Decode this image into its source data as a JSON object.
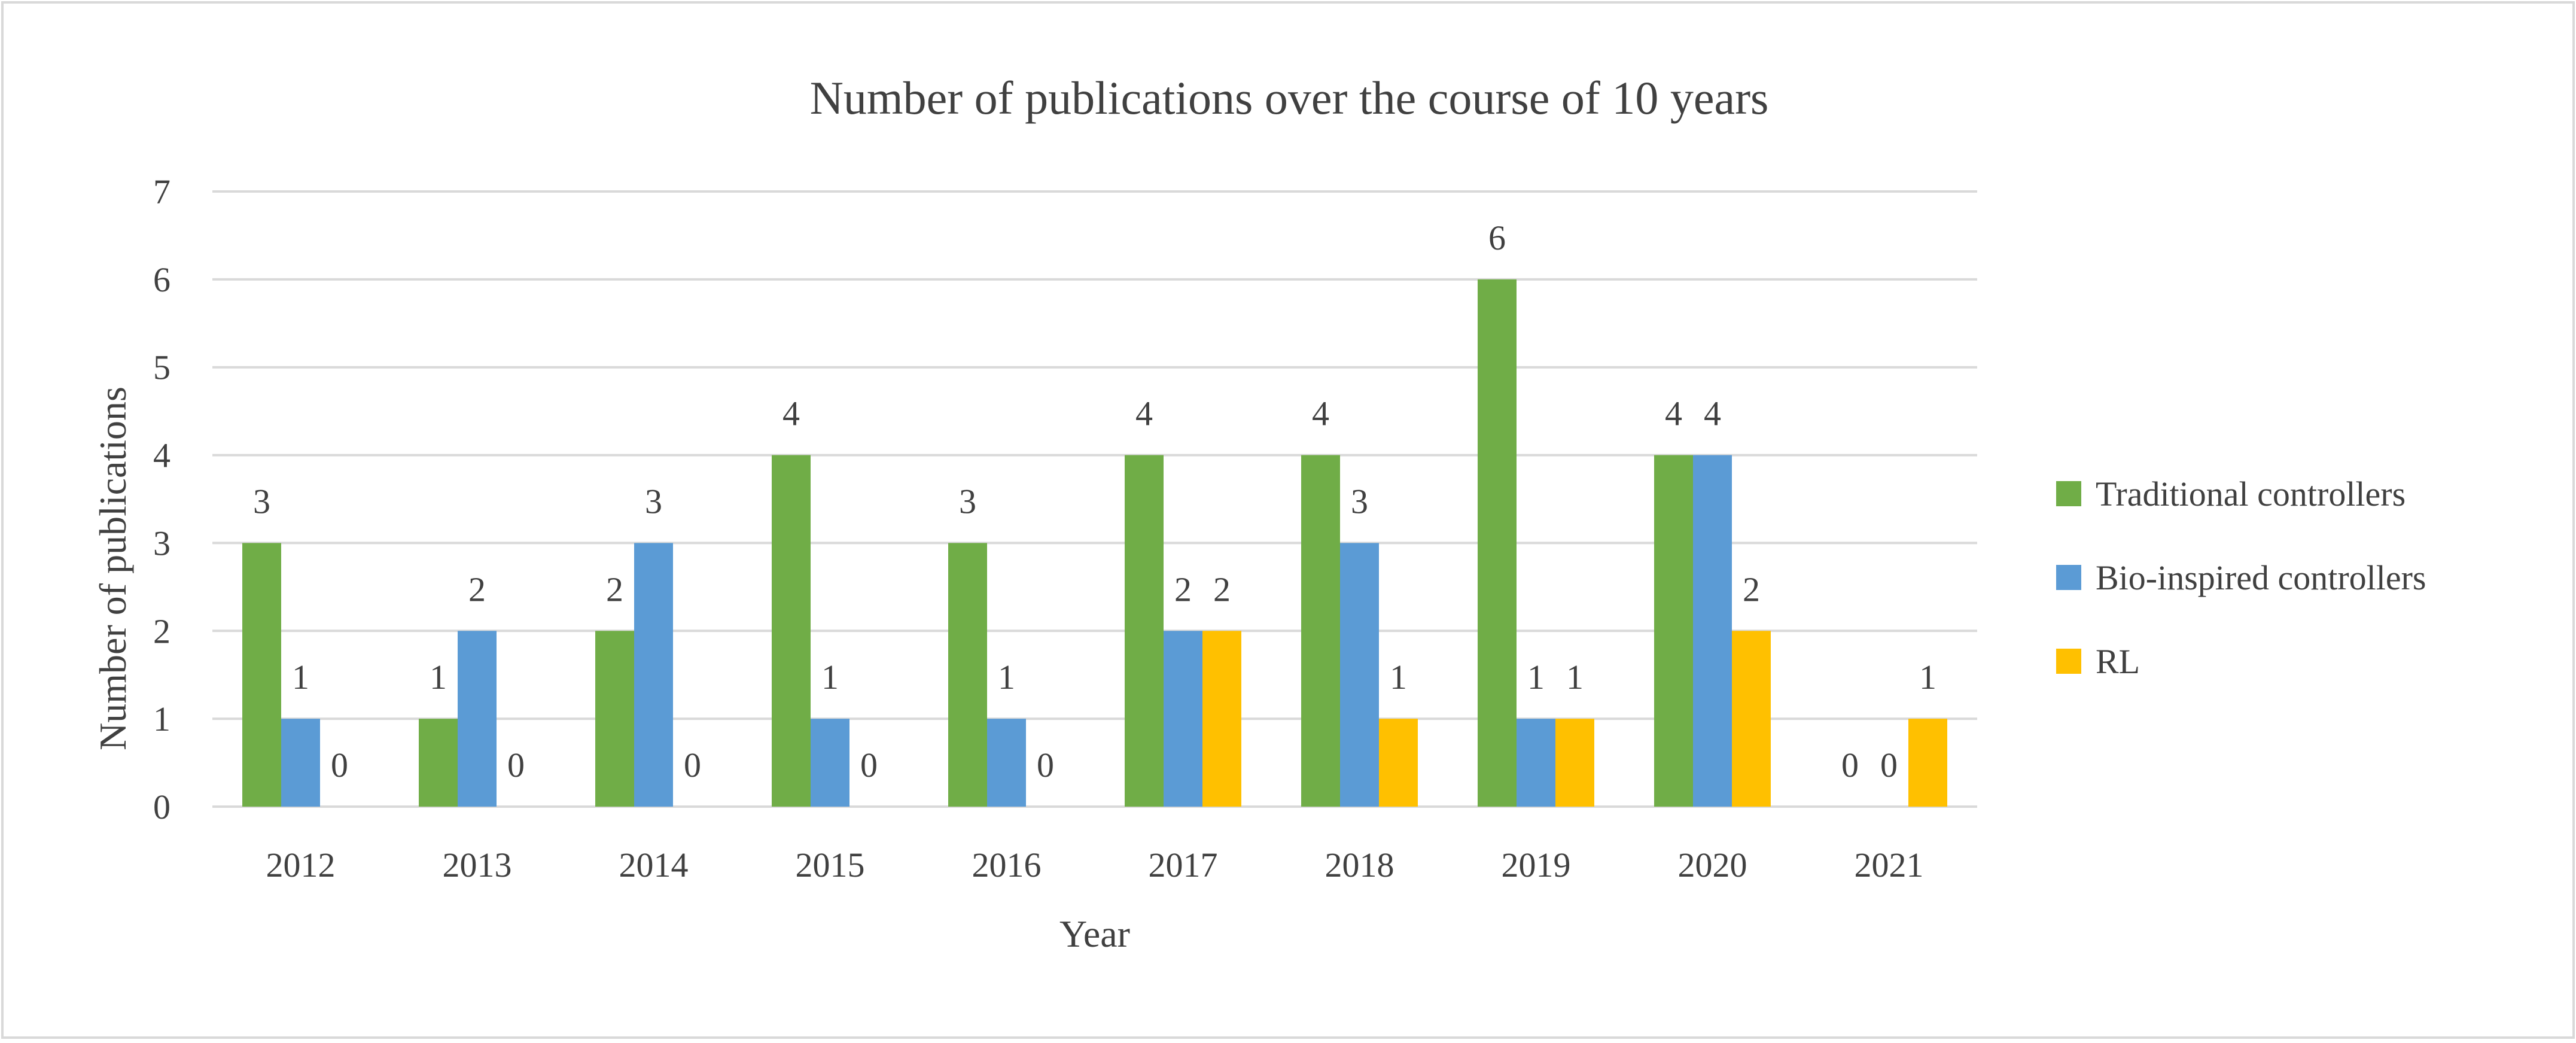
{
  "chart_data": {
    "type": "bar",
    "title": "Number of publications over the course of 10 years",
    "xlabel": "Year",
    "ylabel": "Number of publications",
    "categories": [
      "2012",
      "2013",
      "2014",
      "2015",
      "2016",
      "2017",
      "2018",
      "2019",
      "2020",
      "2021"
    ],
    "series": [
      {
        "name": "Traditional controllers",
        "color": "#70AD47",
        "values": [
          3,
          1,
          2,
          4,
          3,
          4,
          4,
          6,
          4,
          0
        ]
      },
      {
        "name": "Bio-inspired controllers",
        "color": "#5B9BD5",
        "values": [
          1,
          2,
          3,
          1,
          1,
          2,
          3,
          1,
          4,
          0
        ]
      },
      {
        "name": "RL",
        "color": "#FFC000",
        "values": [
          0,
          0,
          0,
          0,
          0,
          2,
          1,
          1,
          2,
          1
        ]
      }
    ],
    "ylim": [
      0,
      7
    ],
    "yticks": [
      0,
      1,
      2,
      3,
      4,
      5,
      6,
      7
    ],
    "grid": true,
    "legend_position": "right"
  }
}
